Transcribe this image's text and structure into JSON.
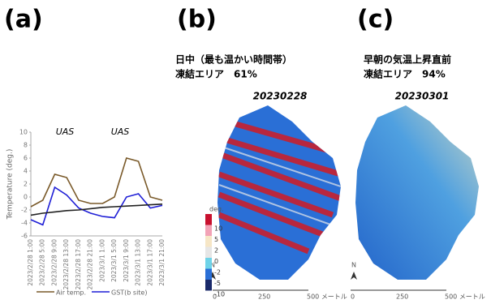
{
  "chart_data": {
    "type": "line",
    "y_label": "Temperature (deg.)",
    "categories": [
      "2023/2/28 1:00",
      "2023/2/28 5:00",
      "2023/2/28 9:00",
      "2023/2/28 13:00",
      "2023/2/28 17:00",
      "2023/2/28 21:00",
      "2023/3/1 1:00",
      "2023/3/1 5:00",
      "2023/3/1 9:00",
      "2023/3/1 13:00",
      "2023/3/1 17:00",
      "2023/3/1 21:00"
    ],
    "series": [
      {
        "name": "Air temp.",
        "color": "#7a5a2a",
        "values": [
          -1.5,
          -0.5,
          3.5,
          3,
          -0.5,
          -1,
          -1,
          0,
          6,
          5.5,
          0,
          -0.5
        ]
      },
      {
        "name": "GST(b site)",
        "color": "#1f1fd6",
        "values": [
          -3.5,
          -4.3,
          1.5,
          0.3,
          -1.7,
          -2.5,
          -3,
          -3.2,
          0,
          0.5,
          -1.7,
          -1.3
        ]
      },
      {
        "color": "#222222",
        "values": [
          -2.8,
          -2.5,
          -2.3,
          -2.1,
          -2,
          -1.8,
          -1.6,
          -1.5,
          -1.4,
          -1.3,
          -1.2,
          -1.1
        ]
      }
    ],
    "annotations": [
      "UAS",
      "UAS"
    ],
    "ylim": [
      -6,
      10
    ],
    "yticks": [
      -6,
      -4,
      -2,
      0,
      2,
      4,
      6,
      8,
      10
    ],
    "grid": false
  },
  "panels": {
    "a": "(a)",
    "b": "(b)",
    "c": "(c)",
    "b_heading": [
      "日中（最も温かい時間帯）",
      "凍結エリア　61%"
    ],
    "b_date": "20230228",
    "c_heading": [
      "早朝の気温上昇直前",
      "凍結エリア　94%"
    ],
    "c_date": "20230301",
    "colorbar": {
      "unit": "deg.",
      "labels": [
        10,
        5,
        2,
        0,
        -2,
        -5,
        -10
      ],
      "colors": [
        "#c8102e",
        "#f2a2b6",
        "#f6e6c6",
        "#e6e6e6",
        "#6fd3e8",
        "#2a6fd6",
        "#1a2a6a"
      ]
    },
    "scale": [
      "0",
      "250",
      "500 メートル"
    ],
    "north": "N"
  }
}
